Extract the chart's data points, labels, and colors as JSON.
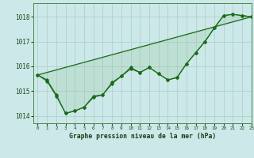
{
  "title": "Graphe pression niveau de la mer (hPa)",
  "background_color": "#cce8e8",
  "grid_color": "#aacccc",
  "line_color": "#1a6b1a",
  "fill_color": "#88bb88",
  "xlim": [
    -0.5,
    23
  ],
  "ylim": [
    1013.7,
    1018.55
  ],
  "yticks": [
    1014,
    1015,
    1016,
    1017,
    1018
  ],
  "xticks": [
    0,
    1,
    2,
    3,
    4,
    5,
    6,
    7,
    8,
    9,
    10,
    11,
    12,
    13,
    14,
    15,
    16,
    17,
    18,
    19,
    20,
    21,
    22,
    23
  ],
  "line1_x": [
    0,
    23
  ],
  "line1_y": [
    1015.65,
    1018.0
  ],
  "line2_x": [
    0,
    1,
    2,
    3,
    4,
    5,
    6,
    7,
    8,
    9,
    10,
    11,
    12,
    13,
    14,
    15,
    16,
    17,
    18,
    19,
    20,
    21,
    22,
    23
  ],
  "line2_y": [
    1015.65,
    1015.45,
    1014.85,
    1014.1,
    1014.2,
    1014.35,
    1014.75,
    1014.85,
    1015.3,
    1015.6,
    1015.9,
    1015.75,
    1015.95,
    1015.7,
    1015.45,
    1015.55,
    1016.1,
    1016.55,
    1017.0,
    1017.55,
    1018.05,
    1018.1,
    1018.05,
    1018.0
  ],
  "line3_x": [
    0,
    1,
    2,
    3,
    4,
    5,
    6,
    7,
    8,
    9,
    10,
    11,
    12,
    13,
    14,
    15,
    16,
    17,
    18,
    19,
    20,
    21,
    22,
    23
  ],
  "line3_y": [
    1015.65,
    1015.4,
    1014.8,
    1014.1,
    1014.2,
    1014.35,
    1014.8,
    1014.85,
    1015.35,
    1015.6,
    1015.95,
    1015.75,
    1015.95,
    1015.7,
    1015.45,
    1015.55,
    1016.1,
    1016.55,
    1017.0,
    1017.55,
    1018.05,
    1018.1,
    1018.05,
    1018.0
  ]
}
